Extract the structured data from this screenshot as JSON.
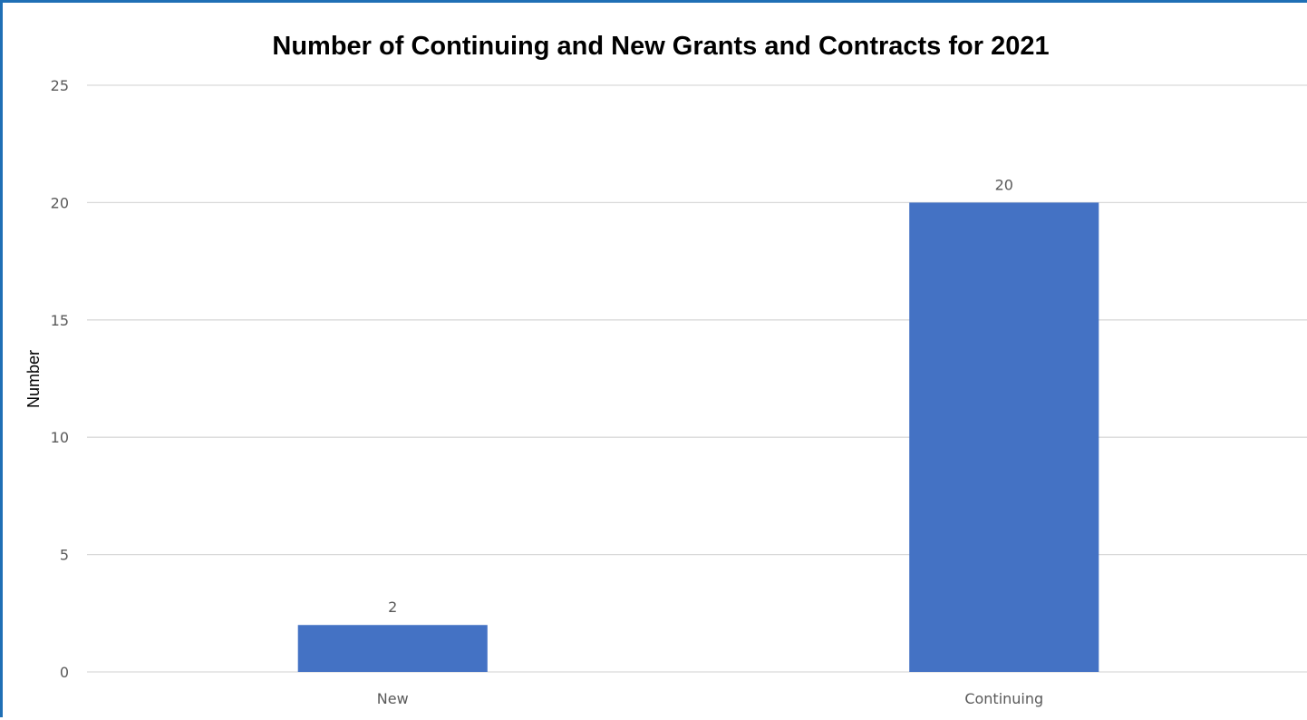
{
  "chart_data": {
    "type": "bar",
    "title": "Number of Continuing and New Grants and Contracts for 2021",
    "xlabel": "",
    "ylabel": "Number",
    "categories": [
      "New",
      "Continuing"
    ],
    "values": [
      2,
      20
    ],
    "data_labels": [
      "2",
      "20"
    ],
    "ylim": [
      0,
      25
    ],
    "yticks": [
      0,
      5,
      10,
      15,
      20,
      25
    ],
    "ytick_labels": [
      "0",
      "5",
      "10",
      "15",
      "20",
      "25"
    ],
    "grid": true,
    "legend": "none",
    "colors": {
      "bar": "#4472c4",
      "frame": "#1f6fb5",
      "grid": "#d9d9d9"
    }
  }
}
